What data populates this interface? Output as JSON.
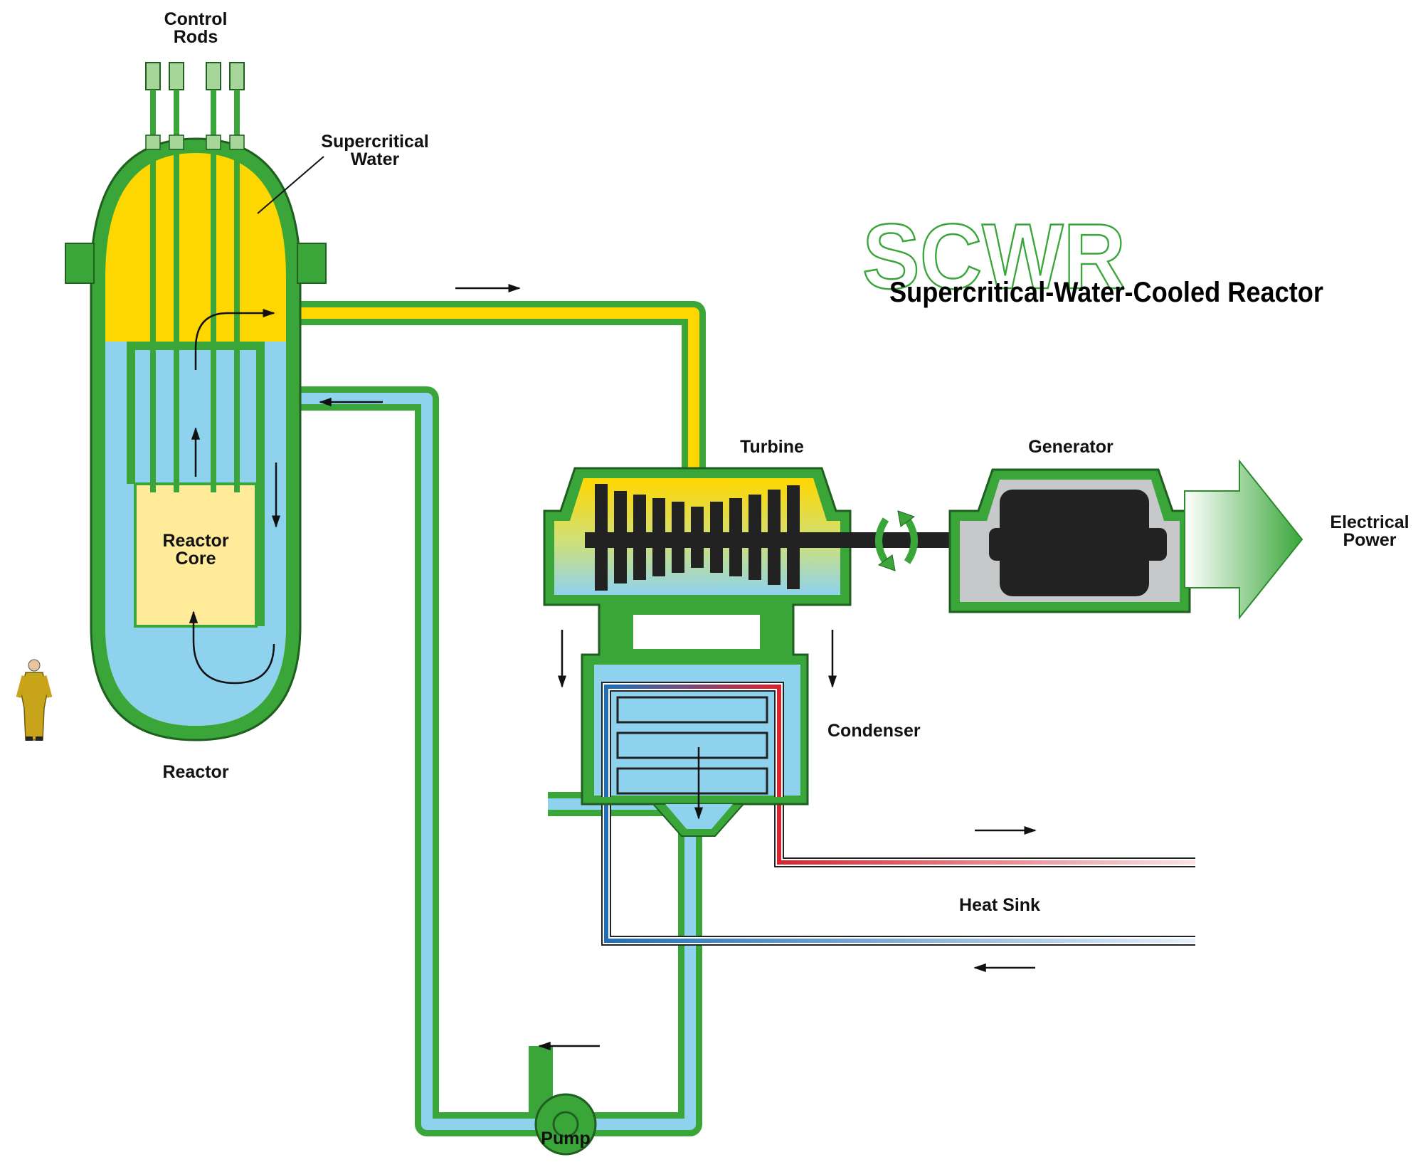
{
  "title": {
    "acronym": "SCWR",
    "full_name": "Supercritical-Water-Cooled Reactor"
  },
  "labels": {
    "control_rods": [
      "Control",
      "Rods"
    ],
    "supercritical_water": [
      "Supercritical",
      "Water"
    ],
    "reactor_core": [
      "Reactor",
      "Core"
    ],
    "reactor": "Reactor",
    "turbine": "Turbine",
    "generator": "Generator",
    "electrical_power": [
      "Electrical",
      "Power"
    ],
    "condenser": "Condenser",
    "heat_sink": "Heat Sink",
    "pump": "Pump"
  },
  "colors": {
    "vessel_green": "#3aa63a",
    "outline": "#1f5f1f",
    "supercritical_yellow": "#ffd700",
    "water_blue": "#8ed2ee",
    "core_fill": "#ffeb99",
    "hot_red": "#d8242f",
    "cold_blue": "#1f6fb8",
    "machine_black": "#222222",
    "generator_gray": "#c7c8ca"
  }
}
